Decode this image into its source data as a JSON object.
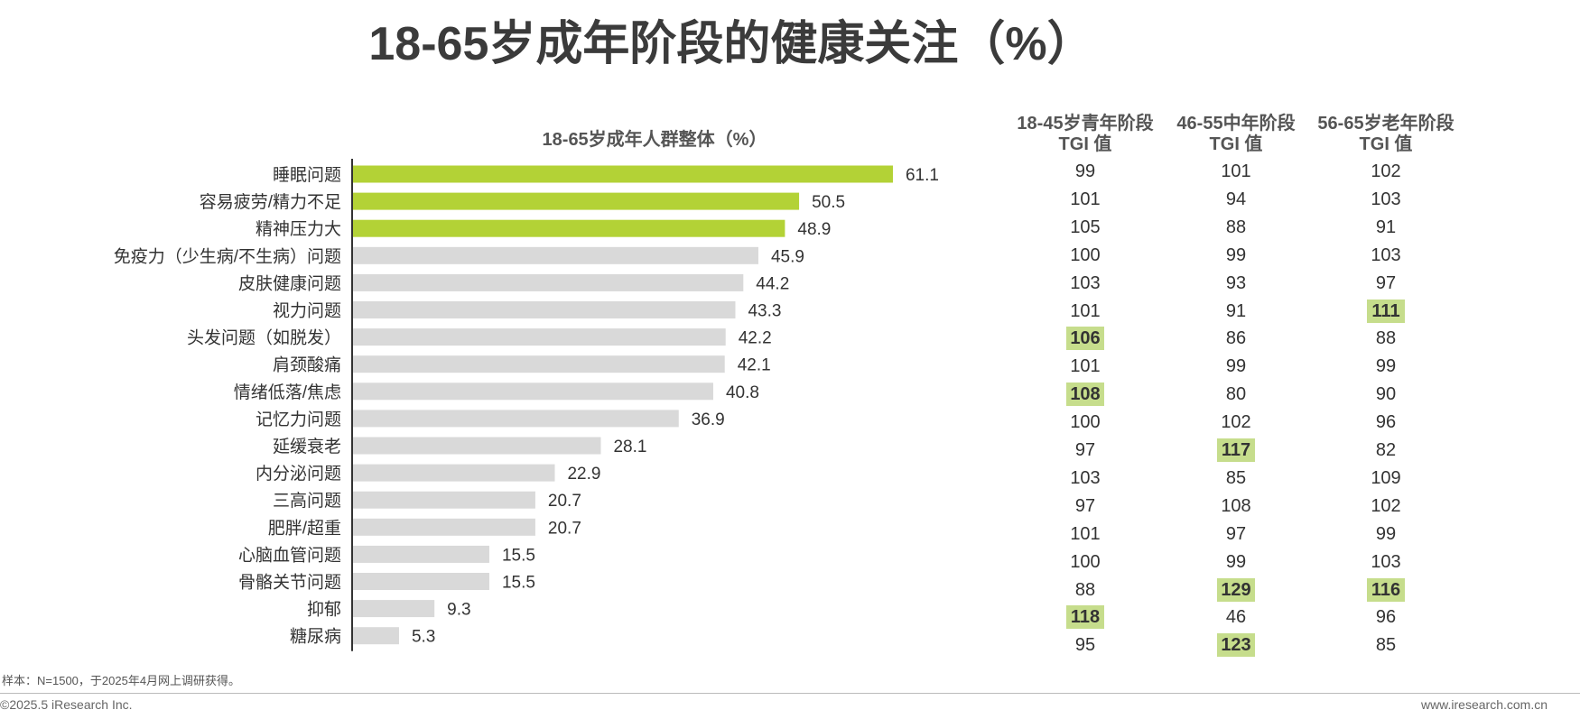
{
  "title": "18-65岁成年阶段的健康关注（%）",
  "chart_data": {
    "type": "bar",
    "orientation": "horizontal",
    "title": "18-65岁成年人群整体（%）",
    "categories": [
      "睡眠问题",
      "容易疲劳/精力不足",
      "精神压力大",
      "免疫力（少生病/不生病）问题",
      "皮肤健康问题",
      "视力问题",
      "头发问题（如脱发）",
      "肩颈酸痛",
      "情绪低落/焦虑",
      "记忆力问题",
      "延缓衰老",
      "内分泌问题",
      "三高问题",
      "肥胖/超重",
      "心脑血管问题",
      "骨骼关节问题",
      "抑郁",
      "糖尿病"
    ],
    "values": [
      61.1,
      50.5,
      48.9,
      45.9,
      44.2,
      43.3,
      42.2,
      42.1,
      40.8,
      36.9,
      28.1,
      22.9,
      20.7,
      20.7,
      15.5,
      15.5,
      9.3,
      5.3
    ],
    "highlight_count": 3,
    "colors": {
      "highlight": "#b3d236",
      "normal": "#d9d9d9",
      "axis": "#333333"
    },
    "xlim": [
      0,
      70
    ]
  },
  "tgi": {
    "columns": [
      {
        "header_line1": "18-45岁青年阶段",
        "header_line2": "TGI 值",
        "values": [
          99,
          101,
          105,
          100,
          103,
          101,
          106,
          101,
          108,
          100,
          97,
          103,
          97,
          101,
          100,
          88,
          118,
          95
        ],
        "highlight": [
          false,
          false,
          false,
          false,
          false,
          false,
          true,
          false,
          true,
          false,
          false,
          false,
          false,
          false,
          false,
          false,
          true,
          false
        ]
      },
      {
        "header_line1": "46-55中年阶段",
        "header_line2": "TGI 值",
        "values": [
          101,
          94,
          88,
          99,
          93,
          91,
          86,
          99,
          80,
          102,
          117,
          85,
          108,
          97,
          99,
          129,
          46,
          123
        ],
        "highlight": [
          false,
          false,
          false,
          false,
          false,
          false,
          false,
          false,
          false,
          false,
          true,
          false,
          false,
          false,
          false,
          true,
          false,
          true
        ]
      },
      {
        "header_line1": "56-65岁老年阶段",
        "header_line2": "TGI 值",
        "values": [
          102,
          103,
          91,
          103,
          97,
          111,
          88,
          99,
          90,
          96,
          82,
          109,
          102,
          99,
          103,
          116,
          96,
          85
        ],
        "highlight": [
          false,
          false,
          false,
          false,
          false,
          true,
          false,
          false,
          false,
          false,
          false,
          false,
          false,
          false,
          false,
          true,
          false,
          false
        ]
      }
    ],
    "highlight_color": "#c6dd8c"
  },
  "footer": {
    "note": "样本：N=1500，于2025年4月网上调研获得。",
    "copyright": "©2025.5 iResearch Inc.",
    "website": "www.iresearch.com.cn"
  }
}
